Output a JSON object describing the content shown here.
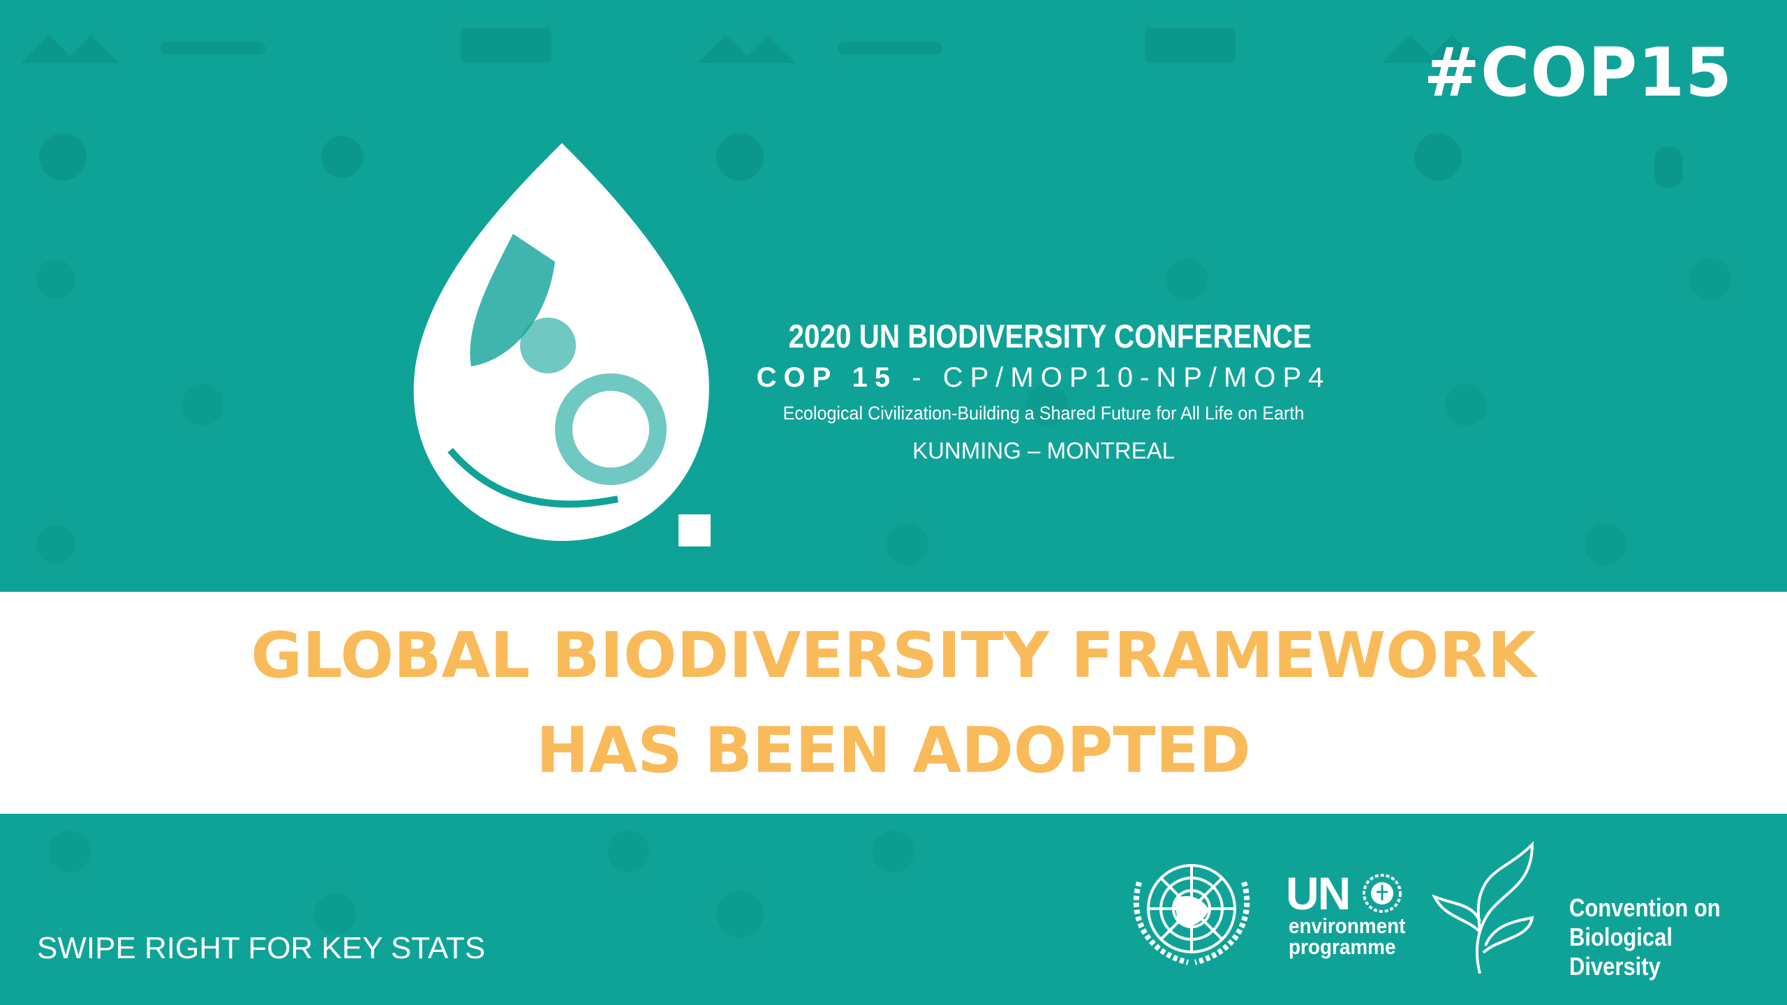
{
  "colors": {
    "background": "#0fa398",
    "headline": "#f9bb5a",
    "band": "#ffffff",
    "text": "#ffffff"
  },
  "hashtag": "#COP15",
  "conference": {
    "title": "2020 UN BIODIVERSITY CONFERENCE",
    "cop_bold": "COP 15",
    "cop_rest": " - CP/MOP10-NP/MOP4",
    "tagline": "Ecological Civilization-Building a Shared Future for All Life on Earth",
    "cities": "KUNMING – MONTREAL"
  },
  "headline": {
    "line1": "GLOBAL BIODIVERSITY FRAMEWORK",
    "line2": "HAS BEEN ADOPTED"
  },
  "footer": {
    "swipe": "SWIPE RIGHT FOR KEY STATS",
    "unep": {
      "un": "UN",
      "line1": "environment",
      "line2": "programme"
    },
    "cbd": {
      "line1": "Convention on",
      "line2": "Biological Diversity"
    }
  },
  "icons": [
    "background-glyph-pattern",
    "cop15-drop-logo",
    "un-emblem-icon",
    "unep-emblem-icon",
    "cbd-leaf-icon"
  ]
}
